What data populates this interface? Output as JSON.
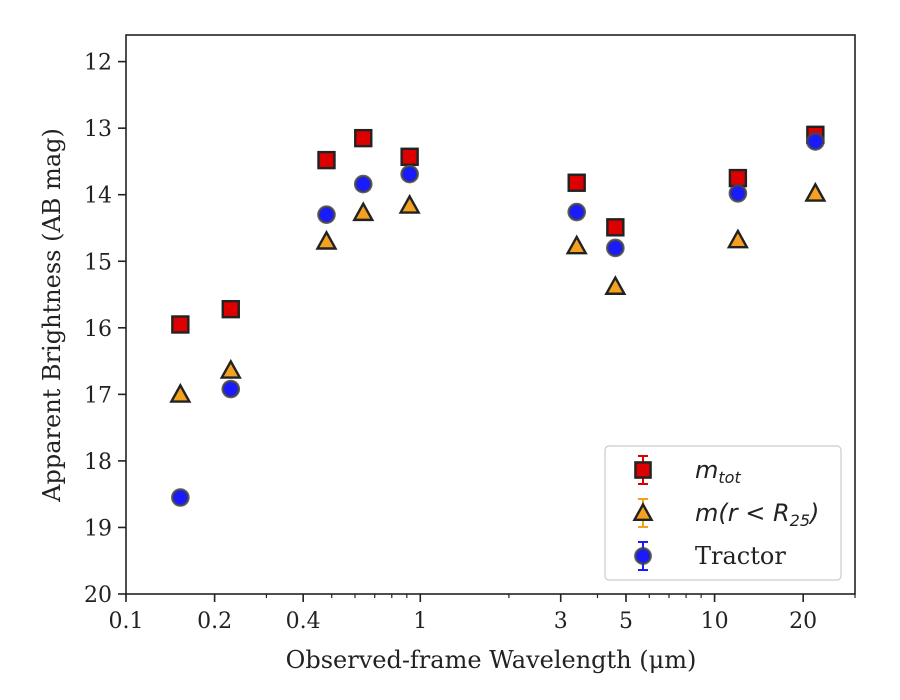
{
  "chart_data": {
    "type": "scatter",
    "xlabel": "Observed-frame Wavelength (μm)",
    "ylabel": "Apparent Brightness (AB mag)",
    "x_scale": "log",
    "xlim": [
      0.1,
      30
    ],
    "ylim": [
      20,
      11.6
    ],
    "y_inverted": true,
    "x_ticks": [
      0.1,
      0.2,
      0.4,
      1,
      3,
      5,
      10,
      20
    ],
    "x_tick_labels": [
      "0.1",
      "0.2",
      "0.4",
      "1",
      "3",
      "5",
      "10",
      "20"
    ],
    "y_ticks": [
      12,
      13,
      14,
      15,
      16,
      17,
      18,
      19,
      20
    ],
    "y_tick_labels": [
      "12",
      "13",
      "14",
      "15",
      "16",
      "17",
      "18",
      "19",
      "20"
    ],
    "grid": false,
    "legend_position": "bottom-right",
    "series": [
      {
        "name": "m_tot",
        "marker": "square",
        "color": "#dd0000",
        "edge": "#222222",
        "x": [
          0.153,
          0.227,
          0.48,
          0.64,
          0.92,
          3.4,
          4.6,
          12.0,
          22.0
        ],
        "y": [
          15.95,
          15.72,
          13.48,
          13.15,
          13.43,
          13.82,
          14.49,
          13.75,
          13.1
        ]
      },
      {
        "name": "m(r<R25)",
        "marker": "triangle",
        "color": "#f4a020",
        "edge": "#222222",
        "x": [
          0.153,
          0.227,
          0.48,
          0.64,
          0.92,
          3.4,
          4.6,
          12.0,
          22.0
        ],
        "y": [
          17.0,
          16.64,
          14.7,
          14.27,
          14.16,
          14.77,
          15.38,
          14.68,
          13.98
        ]
      },
      {
        "name": "Tractor",
        "marker": "circle",
        "color": "#1a1aff",
        "edge": "#444444",
        "x": [
          0.153,
          0.227,
          0.48,
          0.64,
          0.92,
          3.4,
          4.6,
          12.0,
          22.0
        ],
        "y": [
          18.55,
          16.92,
          14.3,
          13.84,
          13.69,
          14.26,
          14.8,
          13.98,
          13.2
        ]
      }
    ],
    "legend": {
      "entries": [
        {
          "main": "m",
          "sub": "tot"
        },
        {
          "main": "m(r < R",
          "sub": "25",
          "tail": ")"
        },
        {
          "main": "Tractor"
        }
      ]
    }
  }
}
